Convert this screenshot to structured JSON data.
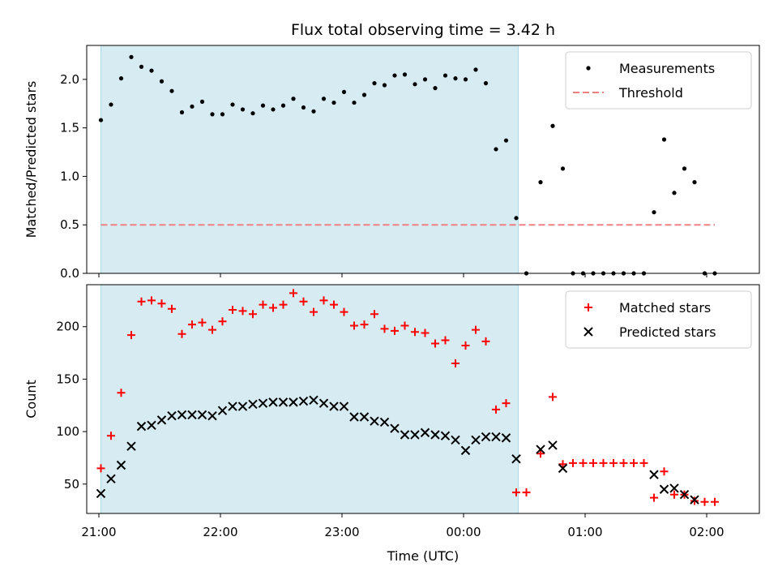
{
  "title": "Flux total observing time = 3.42 h",
  "colors": {
    "shade": "#add8e6",
    "threshold": "#f08080",
    "measurement": "#000000",
    "matched": "#ff0000",
    "predicted": "#000000"
  },
  "chart_data": [
    {
      "type": "scatter",
      "panel": "top",
      "ylabel": "Matched/Predicted stars",
      "xlabel": "",
      "ylim": [
        0,
        2.35
      ],
      "yticks": [
        "0.0",
        "0.5",
        "1.0",
        "1.5",
        "2.0"
      ],
      "yticks_values": [
        0,
        0.5,
        1.0,
        1.5,
        2.0
      ],
      "shaded_x_range": [
        "21:01",
        "00:27"
      ],
      "legend": {
        "position": "top-right",
        "entries": [
          "Measurements",
          "Threshold"
        ]
      },
      "threshold": {
        "name": "Threshold",
        "y": 0.5,
        "x_range": [
          "21:01",
          "02:04"
        ]
      },
      "series": [
        {
          "name": "Measurements",
          "marker": "dot",
          "points": [
            [
              "21:01",
              1.58
            ],
            [
              "21:06",
              1.74
            ],
            [
              "21:11",
              2.01
            ],
            [
              "21:16",
              2.23
            ],
            [
              "21:21",
              2.13
            ],
            [
              "21:26",
              2.09
            ],
            [
              "21:31",
              1.98
            ],
            [
              "21:36",
              1.88
            ],
            [
              "21:41",
              1.66
            ],
            [
              "21:46",
              1.72
            ],
            [
              "21:51",
              1.77
            ],
            [
              "21:56",
              1.64
            ],
            [
              "22:01",
              1.64
            ],
            [
              "22:06",
              1.74
            ],
            [
              "22:11",
              1.69
            ],
            [
              "22:16",
              1.65
            ],
            [
              "22:21",
              1.73
            ],
            [
              "22:26",
              1.69
            ],
            [
              "22:31",
              1.73
            ],
            [
              "22:36",
              1.8
            ],
            [
              "22:41",
              1.71
            ],
            [
              "22:46",
              1.67
            ],
            [
              "22:51",
              1.8
            ],
            [
              "22:56",
              1.76
            ],
            [
              "23:01",
              1.87
            ],
            [
              "23:06",
              1.76
            ],
            [
              "23:11",
              1.84
            ],
            [
              "23:16",
              1.96
            ],
            [
              "23:21",
              1.94
            ],
            [
              "23:26",
              2.04
            ],
            [
              "23:31",
              2.05
            ],
            [
              "23:36",
              1.95
            ],
            [
              "23:41",
              2.0
            ],
            [
              "23:46",
              1.91
            ],
            [
              "23:51",
              2.04
            ],
            [
              "23:56",
              2.01
            ],
            [
              "00:01",
              2.0
            ],
            [
              "00:06",
              2.1
            ],
            [
              "00:11",
              1.96
            ],
            [
              "00:16",
              1.28
            ],
            [
              "00:21",
              1.37
            ],
            [
              "00:26",
              0.57
            ],
            [
              "00:31",
              0.0
            ],
            [
              "00:38",
              0.94
            ],
            [
              "00:44",
              1.52
            ],
            [
              "00:49",
              1.08
            ],
            [
              "00:54",
              0.0
            ],
            [
              "00:59",
              0.0
            ],
            [
              "01:04",
              0.0
            ],
            [
              "01:09",
              0.0
            ],
            [
              "01:14",
              0.0
            ],
            [
              "01:19",
              0.0
            ],
            [
              "01:24",
              0.0
            ],
            [
              "01:29",
              0.0
            ],
            [
              "01:34",
              0.63
            ],
            [
              "01:39",
              1.38
            ],
            [
              "01:44",
              0.83
            ],
            [
              "01:49",
              1.08
            ],
            [
              "01:54",
              0.94
            ],
            [
              "01:59",
              0.0
            ],
            [
              "02:04",
              0.0
            ]
          ]
        }
      ]
    },
    {
      "type": "scatter",
      "panel": "bottom",
      "ylabel": "Count",
      "xlabel": "Time (UTC)",
      "ylim": [
        22,
        240
      ],
      "yticks": [
        "50",
        "100",
        "150",
        "200"
      ],
      "yticks_values": [
        50,
        100,
        150,
        200
      ],
      "xticks": [
        "21:00",
        "22:00",
        "23:00",
        "00:00",
        "01:00",
        "02:00"
      ],
      "shaded_x_range": [
        "21:01",
        "00:27"
      ],
      "legend": {
        "position": "top-right",
        "entries": [
          "Matched stars",
          "Predicted stars"
        ]
      },
      "series": [
        {
          "name": "Matched stars",
          "marker": "plus",
          "points": [
            [
              "21:01",
              65
            ],
            [
              "21:06",
              96
            ],
            [
              "21:11",
              137
            ],
            [
              "21:16",
              192
            ],
            [
              "21:21",
              224
            ],
            [
              "21:26",
              225
            ],
            [
              "21:31",
              222
            ],
            [
              "21:36",
              217
            ],
            [
              "21:41",
              193
            ],
            [
              "21:46",
              202
            ],
            [
              "21:51",
              204
            ],
            [
              "21:56",
              197
            ],
            [
              "22:01",
              205
            ],
            [
              "22:06",
              216
            ],
            [
              "22:11",
              215
            ],
            [
              "22:16",
              212
            ],
            [
              "22:21",
              221
            ],
            [
              "22:26",
              218
            ],
            [
              "22:31",
              221
            ],
            [
              "22:36",
              232
            ],
            [
              "22:41",
              224
            ],
            [
              "22:46",
              214
            ],
            [
              "22:51",
              225
            ],
            [
              "22:56",
              221
            ],
            [
              "23:01",
              214
            ],
            [
              "23:06",
              201
            ],
            [
              "23:11",
              202
            ],
            [
              "23:16",
              212
            ],
            [
              "23:21",
              198
            ],
            [
              "23:26",
              196
            ],
            [
              "23:31",
              201
            ],
            [
              "23:36",
              195
            ],
            [
              "23:41",
              194
            ],
            [
              "23:46",
              184
            ],
            [
              "23:51",
              187
            ],
            [
              "23:56",
              165
            ],
            [
              "00:01",
              182
            ],
            [
              "00:06",
              197
            ],
            [
              "00:11",
              186
            ],
            [
              "00:16",
              121
            ],
            [
              "00:21",
              127
            ],
            [
              "00:26",
              42
            ],
            [
              "00:31",
              42
            ],
            [
              "00:38",
              79
            ],
            [
              "00:44",
              133
            ],
            [
              "00:49",
              69
            ],
            [
              "00:54",
              70
            ],
            [
              "00:59",
              70
            ],
            [
              "01:04",
              70
            ],
            [
              "01:09",
              70
            ],
            [
              "01:14",
              70
            ],
            [
              "01:19",
              70
            ],
            [
              "01:24",
              70
            ],
            [
              "01:29",
              70
            ],
            [
              "01:34",
              37
            ],
            [
              "01:39",
              62
            ],
            [
              "01:44",
              40
            ],
            [
              "01:49",
              40
            ],
            [
              "01:54",
              34
            ],
            [
              "01:59",
              33
            ],
            [
              "02:04",
              33
            ]
          ]
        },
        {
          "name": "Predicted stars",
          "marker": "x",
          "points": [
            [
              "21:01",
              41
            ],
            [
              "21:06",
              55
            ],
            [
              "21:11",
              68
            ],
            [
              "21:16",
              86
            ],
            [
              "21:21",
              105
            ],
            [
              "21:26",
              106
            ],
            [
              "21:31",
              111
            ],
            [
              "21:36",
              115
            ],
            [
              "21:41",
              116
            ],
            [
              "21:46",
              116
            ],
            [
              "21:51",
              116
            ],
            [
              "21:56",
              115
            ],
            [
              "22:01",
              120
            ],
            [
              "22:06",
              124
            ],
            [
              "22:11",
              124
            ],
            [
              "22:16",
              126
            ],
            [
              "22:21",
              127
            ],
            [
              "22:26",
              128
            ],
            [
              "22:31",
              128
            ],
            [
              "22:36",
              128
            ],
            [
              "22:41",
              129
            ],
            [
              "22:46",
              130
            ],
            [
              "22:51",
              127
            ],
            [
              "22:56",
              124
            ],
            [
              "23:01",
              124
            ],
            [
              "23:06",
              114
            ],
            [
              "23:11",
              114
            ],
            [
              "23:16",
              110
            ],
            [
              "23:21",
              109
            ],
            [
              "23:26",
              103
            ],
            [
              "23:31",
              97
            ],
            [
              "23:36",
              97
            ],
            [
              "23:41",
              99
            ],
            [
              "23:46",
              97
            ],
            [
              "23:51",
              96
            ],
            [
              "23:56",
              92
            ],
            [
              "00:01",
              82
            ],
            [
              "00:06",
              92
            ],
            [
              "00:11",
              95
            ],
            [
              "00:16",
              95
            ],
            [
              "00:21",
              94
            ],
            [
              "00:26",
              74
            ],
            [
              "00:38",
              83
            ],
            [
              "00:44",
              87
            ],
            [
              "00:49",
              65
            ],
            [
              "01:34",
              59
            ],
            [
              "01:39",
              45
            ],
            [
              "01:44",
              46
            ],
            [
              "01:49",
              40
            ],
            [
              "01:54",
              35
            ]
          ]
        }
      ]
    }
  ]
}
